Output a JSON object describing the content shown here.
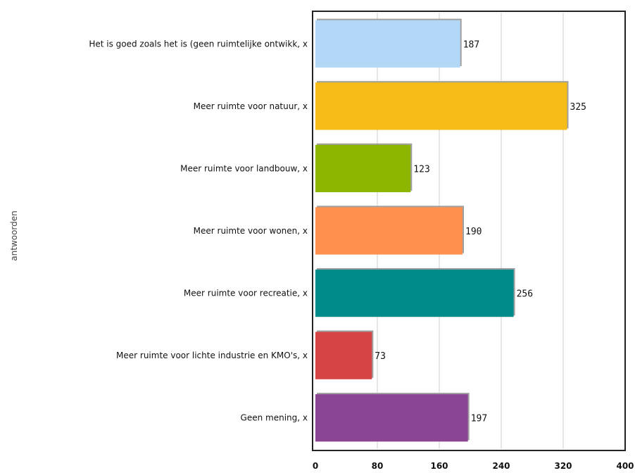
{
  "chart_data": {
    "type": "bar",
    "orientation": "horizontal",
    "categories": [
      "Het is goed zoals het is (geen ruimtelijke ontwikk, x",
      "Meer ruimte voor natuur, x",
      "Meer ruimte voor landbouw, x",
      "Meer ruimte voor wonen, x",
      "Meer ruimte voor recreatie, x",
      "Meer ruimte voor lichte industrie en KMO's, x",
      "Geen mening, x"
    ],
    "values": [
      187,
      325,
      123,
      190,
      256,
      73,
      197
    ],
    "value_labels": [
      "187",
      "325",
      "123",
      "190",
      "256",
      "73",
      "197"
    ],
    "colors": [
      "#b3d8f7",
      "#f4bc14",
      "#8db600",
      "#ff914d",
      "#008b8b",
      "#d64545",
      "#8b4693"
    ],
    "title": "",
    "xlabel": "",
    "ylabel": "antwoorden",
    "xlim": [
      0,
      400
    ],
    "xticks": [
      0,
      80,
      160,
      240,
      320,
      400
    ],
    "xtick_labels": [
      "0",
      "80",
      "160",
      "240",
      "320",
      "400"
    ],
    "grid": true
  }
}
